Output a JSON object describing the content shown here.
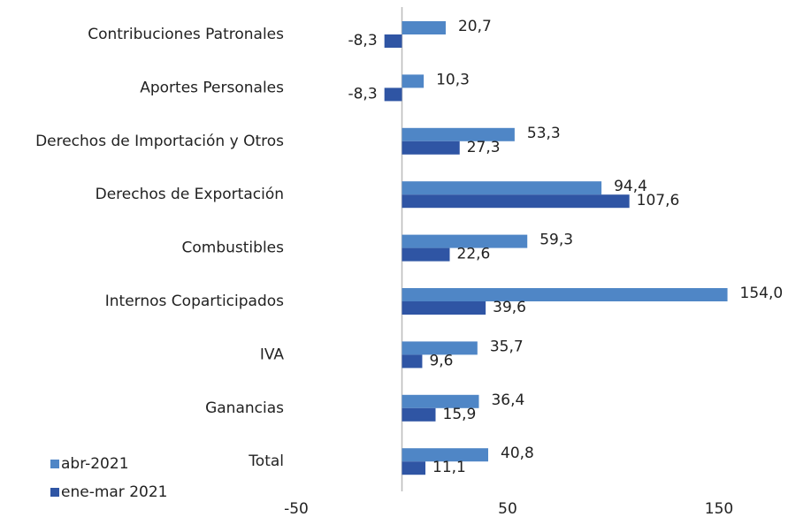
{
  "chart_data": {
    "type": "bar",
    "orientation": "horizontal",
    "categories": [
      "Contribuciones Patronales",
      "Aportes Personales",
      "Derechos de Importación y Otros",
      "Derechos de Exportación",
      "Combustibles",
      "Internos Coparticipados",
      "IVA",
      "Ganancias",
      "Total"
    ],
    "series": [
      {
        "name": "abr-2021",
        "color": "#4f86c6",
        "values": [
          20.7,
          10.3,
          53.3,
          94.4,
          59.3,
          154.0,
          35.7,
          36.4,
          40.8
        ],
        "value_labels": [
          "20,7",
          "10,3",
          "53,3",
          "94,4",
          "59,3",
          "154,0",
          "35,7",
          "36,4",
          "40,8"
        ]
      },
      {
        "name": "ene-mar 2021",
        "color": "#2f55a4",
        "values": [
          -8.3,
          -8.3,
          27.3,
          107.6,
          22.6,
          39.6,
          9.6,
          15.9,
          11.1
        ],
        "value_labels": [
          "-8,3",
          "-8,3",
          "27,3",
          "107,6",
          "22,6",
          "39,6",
          "9,6",
          "15,9",
          "11,1"
        ]
      }
    ],
    "xlim": [
      -50,
      150
    ],
    "xticks": [
      -50,
      50,
      150
    ],
    "legend": "bottom-left"
  }
}
